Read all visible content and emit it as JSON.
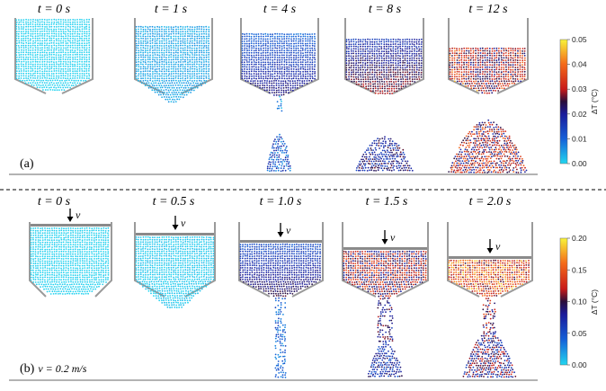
{
  "panel_a": {
    "label": "(a)",
    "frames": [
      "t = 0 s",
      "t = 1 s",
      "t = 4 s",
      "t = 8 s",
      "t = 12 s"
    ],
    "colorbar": {
      "title": "ΔT (°C)",
      "ticks": [
        "0.05",
        "0.04",
        "0.03",
        "0.02",
        "0.01",
        "0.00"
      ],
      "min": 0.0,
      "max": 0.05
    }
  },
  "panel_b": {
    "label_prefix": "(b)",
    "label_velocity": "v = 0.2 m/s",
    "piston_label": "v",
    "frames": [
      "t = 0 s",
      "t = 0.5 s",
      "t = 1.0 s",
      "t = 1.5 s",
      "t = 2.0 s"
    ],
    "colorbar": {
      "title": "ΔT (°C)",
      "ticks": [
        "0.20",
        "0.15",
        "0.10",
        "0.05",
        "0.00"
      ],
      "min": 0.0,
      "max": 0.2
    }
  },
  "colors": {
    "particle_cold": "#2ecbe6",
    "particle_mid": "#1a1aa6",
    "particle_hot": "#e8201a",
    "particle_max": "#f7e83a",
    "wall": "#9a9a9a",
    "divider": "#000000"
  }
}
